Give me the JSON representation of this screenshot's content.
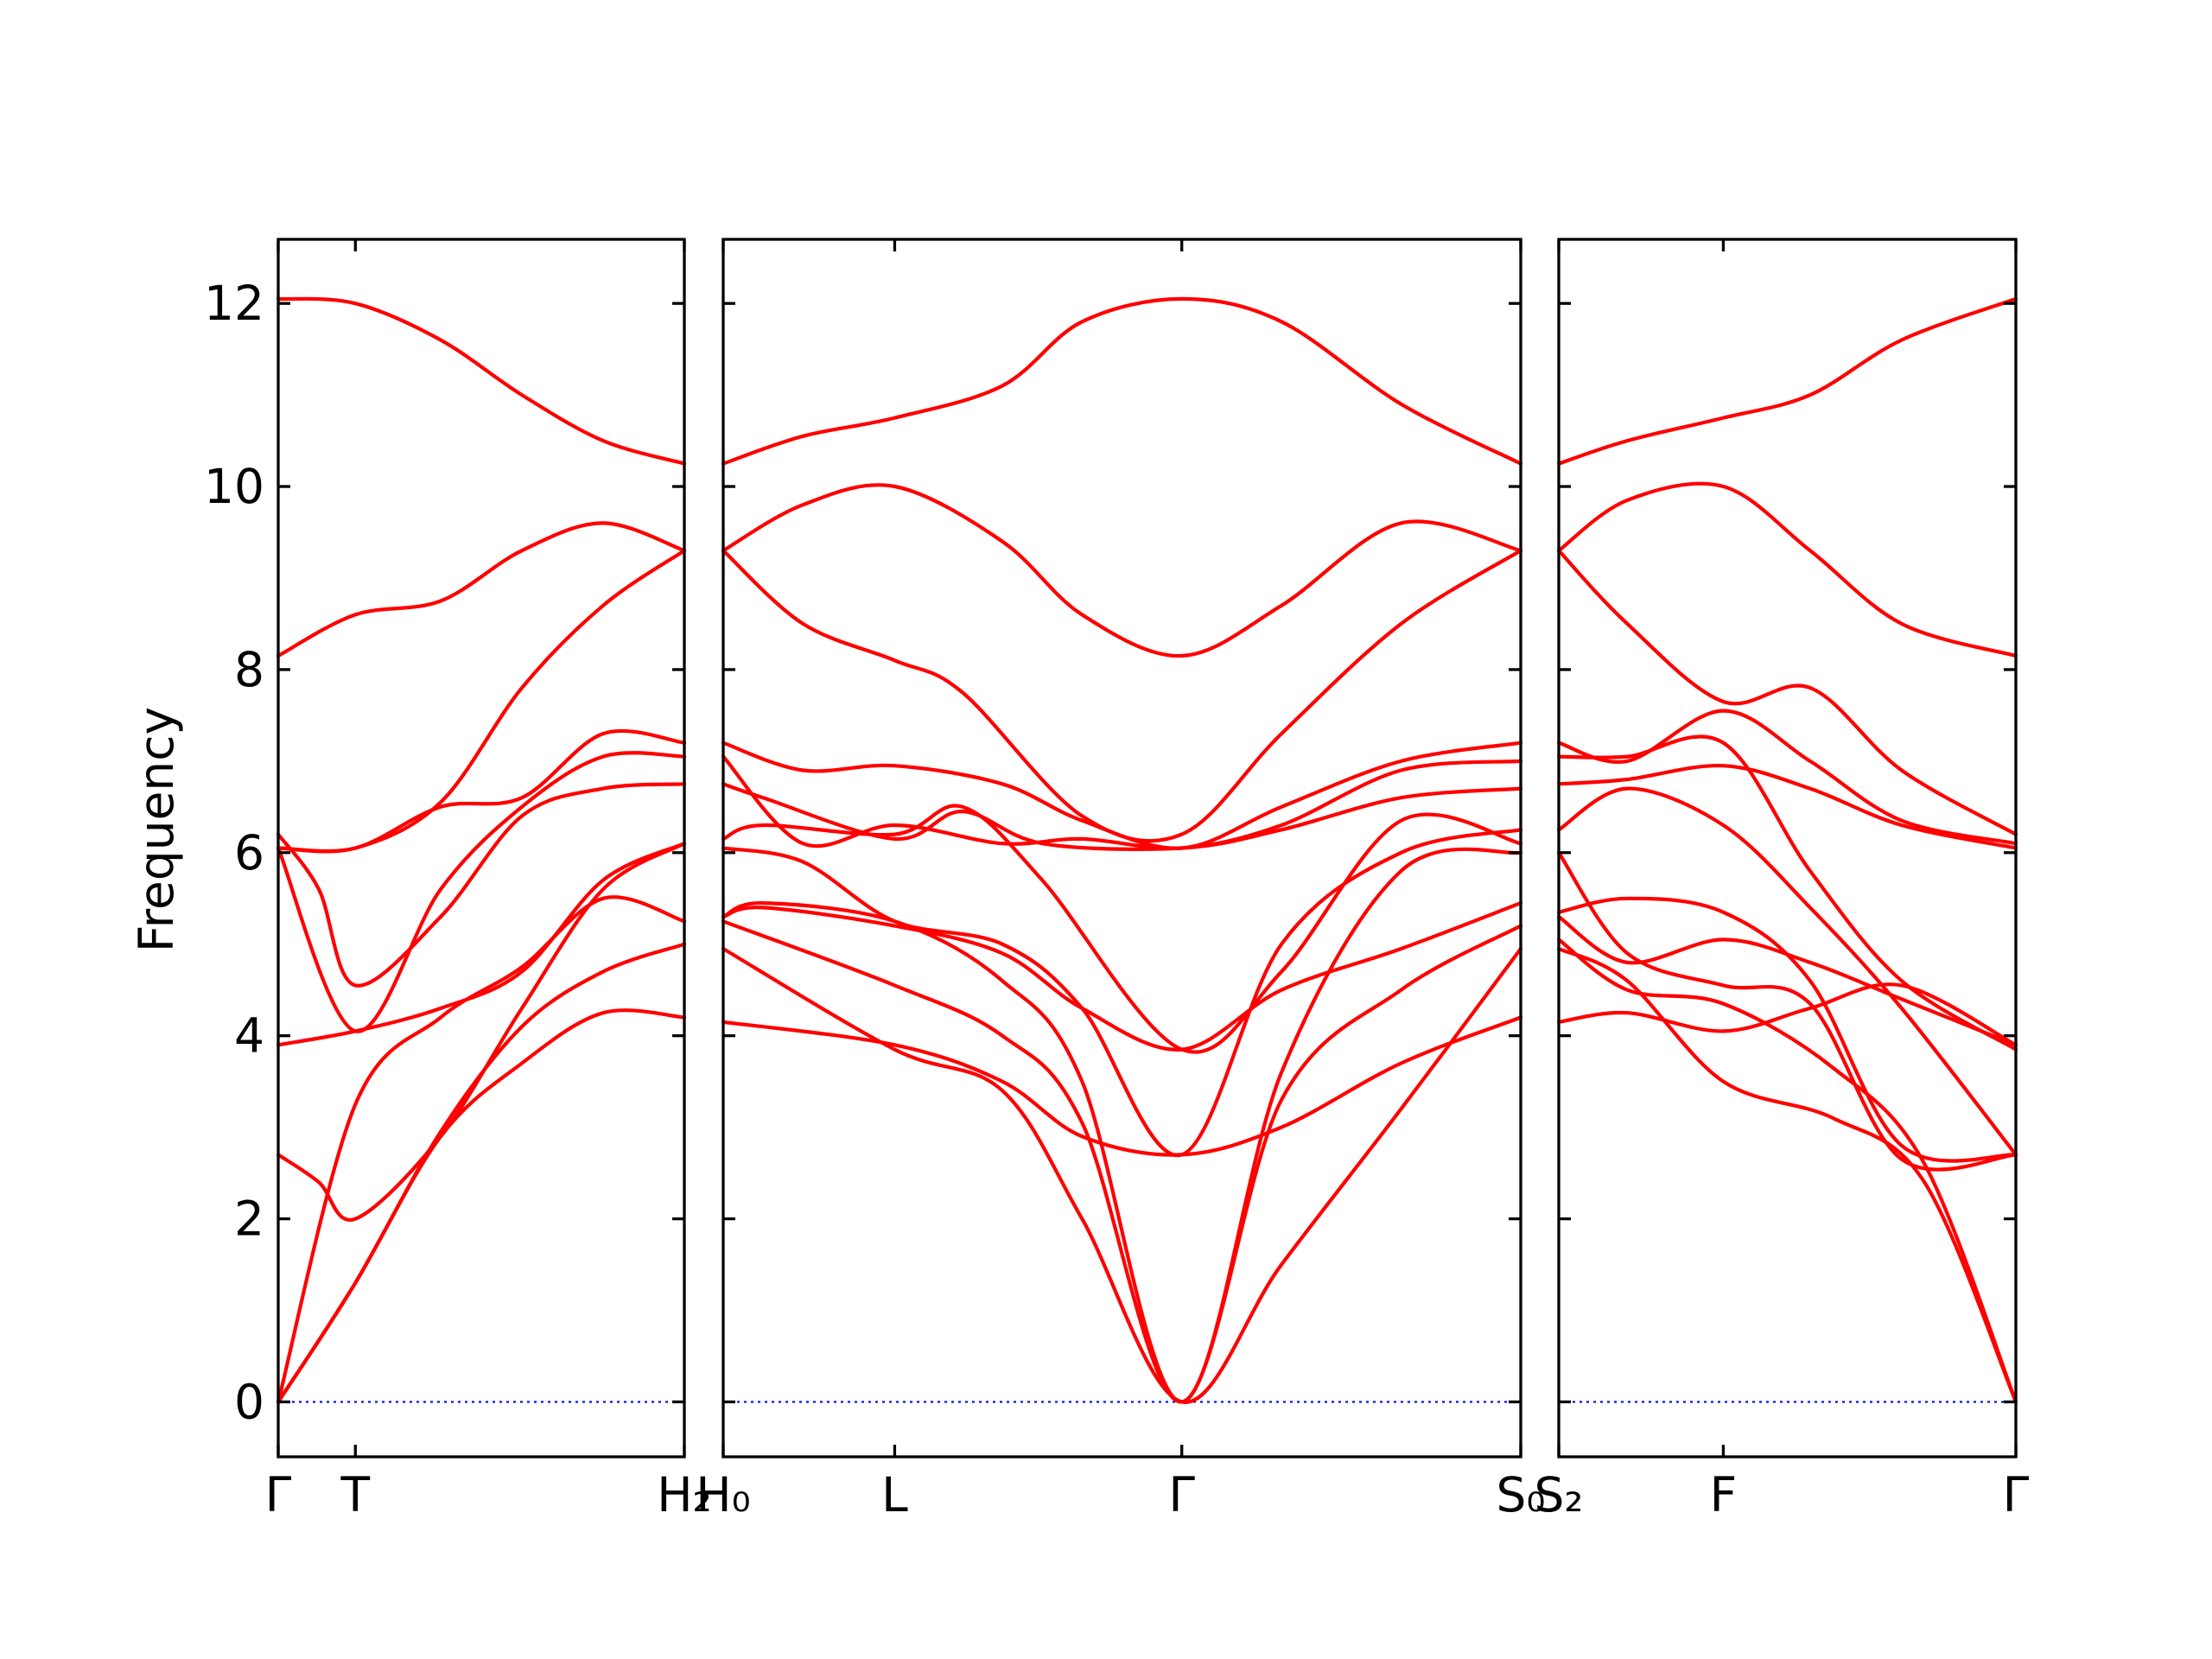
{
  "chart_data": {
    "type": "line",
    "title": "",
    "ylabel": "Frequency",
    "ylim": [
      -0.6,
      12.7
    ],
    "yticks": [
      0,
      2,
      4,
      6,
      8,
      10,
      12
    ],
    "ytick_labels": [
      "0",
      "2",
      "4",
      "6",
      "8",
      "10",
      "12"
    ],
    "grid": false,
    "legend": "none",
    "colors": {
      "bands": "#ff0000",
      "zero_line": "#0000ff",
      "axes": "#000000"
    },
    "panels": [
      {
        "id": "panel-1",
        "xlim": [
          0,
          1
        ],
        "ticks": [
          {
            "x": 0.0,
            "label": "Γ"
          },
          {
            "x": 0.19,
            "label": "T"
          },
          {
            "x": 1.0,
            "label": "H₂"
          }
        ],
        "bands": [
          {
            "x": [
              0,
              0.19,
              0.4,
              0.6,
              0.8,
              1.0
            ],
            "y": [
              0,
              1.3,
              2.9,
              3.7,
              4.25,
              4.2
            ]
          },
          {
            "x": [
              0,
              0.19,
              0.4,
              0.6,
              0.8,
              1.0
            ],
            "y": [
              0,
              1.3,
              2.95,
              4.1,
              4.7,
              5.0
            ]
          },
          {
            "x": [
              0,
              0.19,
              0.4,
              0.6,
              0.8,
              1.0
            ],
            "y": [
              0,
              3.25,
              4.2,
              4.75,
              5.5,
              5.25
            ]
          },
          {
            "x": [
              0,
              0.1,
              0.19,
              0.4,
              0.6,
              0.8,
              1.0
            ],
            "y": [
              2.7,
              2.4,
              2.0,
              2.9,
              4.3,
              5.6,
              6.1
            ]
          },
          {
            "x": [
              0,
              0.19,
              0.4,
              0.6,
              0.8,
              1.0
            ],
            "y": [
              3.9,
              4.05,
              4.3,
              4.7,
              5.7,
              6.1
            ]
          },
          {
            "x": [
              0,
              0.1,
              0.19,
              0.4,
              0.6,
              0.8,
              1.0
            ],
            "y": [
              6.2,
              5.6,
              4.55,
              5.3,
              6.4,
              6.7,
              6.75
            ]
          },
          {
            "x": [
              0,
              0.19,
              0.4,
              0.6,
              0.8,
              1.0
            ],
            "y": [
              6.05,
              4.05,
              5.6,
              6.5,
              7.05,
              7.05
            ]
          },
          {
            "x": [
              0,
              0.19,
              0.4,
              0.6,
              0.8,
              1.0
            ],
            "y": [
              6.05,
              6.05,
              6.5,
              6.6,
              7.3,
              7.2
            ]
          },
          {
            "x": [
              0,
              0.19,
              0.4,
              0.6,
              0.8,
              1.0
            ],
            "y": [
              6.05,
              6.05,
              6.55,
              7.8,
              8.7,
              9.3
            ]
          },
          {
            "x": [
              0,
              0.19,
              0.4,
              0.6,
              0.8,
              1.0
            ],
            "y": [
              8.15,
              8.6,
              8.75,
              9.3,
              9.6,
              9.3
            ]
          },
          {
            "x": [
              0,
              0.19,
              0.4,
              0.6,
              0.8,
              1.0
            ],
            "y": [
              12.05,
              12.0,
              11.6,
              11.0,
              10.5,
              10.25
            ]
          }
        ]
      },
      {
        "id": "panel-2",
        "xlim": [
          0,
          1
        ],
        "ticks": [
          {
            "x": 0.0,
            "label": "H₀"
          },
          {
            "x": 0.215,
            "label": "L"
          },
          {
            "x": 0.575,
            "label": "Γ"
          },
          {
            "x": 1.0,
            "label": "S₀"
          }
        ],
        "bands": [
          {
            "x": [
              0,
              0.215,
              0.35,
              0.45,
              0.575,
              0.7,
              0.85,
              1.0
            ],
            "y": [
              4.15,
              3.9,
              3.5,
              2.9,
              2.7,
              3.0,
              3.7,
              4.2
            ]
          },
          {
            "x": [
              0,
              0.215,
              0.35,
              0.45,
              0.575,
              0.7,
              0.85,
              1.0
            ],
            "y": [
              4.95,
              3.85,
              3.4,
              2.0,
              0,
              1.5,
              3.2,
              4.95
            ]
          },
          {
            "x": [
              0,
              0.215,
              0.35,
              0.45,
              0.575,
              0.7,
              0.85,
              1.0
            ],
            "y": [
              5.25,
              4.55,
              4.0,
              3.05,
              0,
              3.3,
              4.5,
              5.2
            ]
          },
          {
            "x": [
              0,
              0.05,
              0.215,
              0.35,
              0.45,
              0.575,
              0.7,
              0.85,
              1.0
            ],
            "y": [
              5.3,
              5.4,
              5.2,
              4.9,
              4.3,
              3.85,
              4.5,
              4.95,
              5.45
            ]
          },
          {
            "x": [
              0,
              0.05,
              0.215,
              0.35,
              0.45,
              0.575,
              0.7,
              0.85,
              1.0
            ],
            "y": [
              5.3,
              5.45,
              5.25,
              4.6,
              3.5,
              0,
              3.6,
              5.8,
              6.0
            ]
          },
          {
            "x": [
              0,
              0.1,
              0.215,
              0.35,
              0.45,
              0.575,
              0.7,
              0.85,
              1.0
            ],
            "y": [
              6.05,
              5.9,
              5.25,
              5.0,
              4.3,
              2.7,
              5.0,
              6.0,
              6.25
            ]
          },
          {
            "x": [
              0,
              0.05,
              0.215,
              0.3,
              0.4,
              0.575,
              0.7,
              0.85,
              1.0
            ],
            "y": [
              6.15,
              6.3,
              6.2,
              6.5,
              5.7,
              3.85,
              4.7,
              6.35,
              6.1
            ]
          },
          {
            "x": [
              0,
              0.05,
              0.215,
              0.3,
              0.4,
              0.575,
              0.7,
              0.85,
              1.0
            ],
            "y": [
              6.75,
              6.6,
              6.15,
              6.45,
              6.1,
              6.05,
              6.25,
              6.6,
              6.7
            ]
          },
          {
            "x": [
              0,
              0.1,
              0.215,
              0.35,
              0.45,
              0.575,
              0.7,
              0.85,
              1.0
            ],
            "y": [
              7.05,
              6.1,
              6.3,
              6.1,
              6.15,
              6.05,
              6.3,
              6.9,
              7.0
            ]
          },
          {
            "x": [
              0,
              0.1,
              0.215,
              0.35,
              0.45,
              0.575,
              0.7,
              0.85,
              1.0
            ],
            "y": [
              7.2,
              6.9,
              6.95,
              6.75,
              6.35,
              6.05,
              6.5,
              7.0,
              7.2
            ]
          },
          {
            "x": [
              0,
              0.1,
              0.215,
              0.3,
              0.45,
              0.575,
              0.7,
              0.85,
              1.0
            ],
            "y": [
              9.3,
              8.5,
              8.1,
              7.75,
              6.4,
              6.2,
              7.3,
              8.5,
              9.3
            ]
          },
          {
            "x": [
              0,
              0.1,
              0.215,
              0.35,
              0.45,
              0.575,
              0.7,
              0.85,
              1.0
            ],
            "y": [
              9.3,
              9.8,
              10.0,
              9.4,
              8.6,
              8.15,
              8.7,
              9.6,
              9.3
            ]
          },
          {
            "x": [
              0,
              0.1,
              0.215,
              0.35,
              0.45,
              0.575,
              0.7,
              0.85,
              1.0
            ],
            "y": [
              10.25,
              10.55,
              10.75,
              11.1,
              11.8,
              12.05,
              11.8,
              10.9,
              10.25
            ]
          }
        ]
      },
      {
        "id": "panel-3",
        "xlim": [
          0,
          1
        ],
        "ticks": [
          {
            "x": 0.0,
            "label": "S₂"
          },
          {
            "x": 0.36,
            "label": "F"
          },
          {
            "x": 1.0,
            "label": "Γ"
          }
        ],
        "bands": [
          {
            "x": [
              0,
              0.15,
              0.36,
              0.55,
              0.75,
              1.0
            ],
            "y": [
              4.15,
              4.25,
              4.05,
              4.3,
              4.55,
              3.9
            ]
          },
          {
            "x": [
              0,
              0.15,
              0.36,
              0.6,
              0.8,
              1.0
            ],
            "y": [
              4.95,
              4.6,
              3.5,
              3.1,
              2.4,
              0
            ]
          },
          {
            "x": [
              0,
              0.15,
              0.36,
              0.6,
              0.8,
              1.0
            ],
            "y": [
              5.05,
              4.5,
              4.35,
              3.65,
              2.6,
              0
            ]
          },
          {
            "x": [
              0,
              0.15,
              0.36,
              0.55,
              0.75,
              1.0
            ],
            "y": [
              5.3,
              4.8,
              5.05,
              4.8,
              4.4,
              3.9
            ]
          },
          {
            "x": [
              0,
              0.15,
              0.36,
              0.55,
              0.75,
              1.0
            ],
            "y": [
              5.35,
              5.5,
              5.35,
              4.6,
              2.8,
              2.7
            ]
          },
          {
            "x": [
              0,
              0.15,
              0.36,
              0.55,
              0.75,
              1.0
            ],
            "y": [
              6.0,
              4.9,
              4.55,
              4.35,
              2.65,
              2.7
            ]
          },
          {
            "x": [
              0,
              0.15,
              0.36,
              0.55,
              0.75,
              1.0
            ],
            "y": [
              6.25,
              6.7,
              6.3,
              5.4,
              4.3,
              2.7
            ]
          },
          {
            "x": [
              0,
              0.15,
              0.36,
              0.55,
              0.75,
              1.0
            ],
            "y": [
              6.75,
              6.8,
              6.95,
              6.7,
              6.3,
              6.05
            ]
          },
          {
            "x": [
              0,
              0.15,
              0.36,
              0.55,
              0.75,
              1.0
            ],
            "y": [
              7.05,
              7.05,
              7.2,
              5.8,
              4.6,
              3.85
            ]
          },
          {
            "x": [
              0,
              0.15,
              0.36,
              0.55,
              0.75,
              1.0
            ],
            "y": [
              7.2,
              7.0,
              7.55,
              7.0,
              6.35,
              6.1
            ]
          },
          {
            "x": [
              0,
              0.15,
              0.36,
              0.55,
              0.75,
              1.0
            ],
            "y": [
              9.3,
              8.5,
              7.65,
              7.8,
              6.9,
              6.2
            ]
          },
          {
            "x": [
              0,
              0.15,
              0.36,
              0.55,
              0.75,
              1.0
            ],
            "y": [
              9.3,
              9.85,
              10.0,
              9.3,
              8.5,
              8.15
            ]
          },
          {
            "x": [
              0,
              0.15,
              0.36,
              0.55,
              0.75,
              1.0
            ],
            "y": [
              10.25,
              10.5,
              10.75,
              11.0,
              11.6,
              12.05
            ]
          }
        ]
      }
    ]
  }
}
